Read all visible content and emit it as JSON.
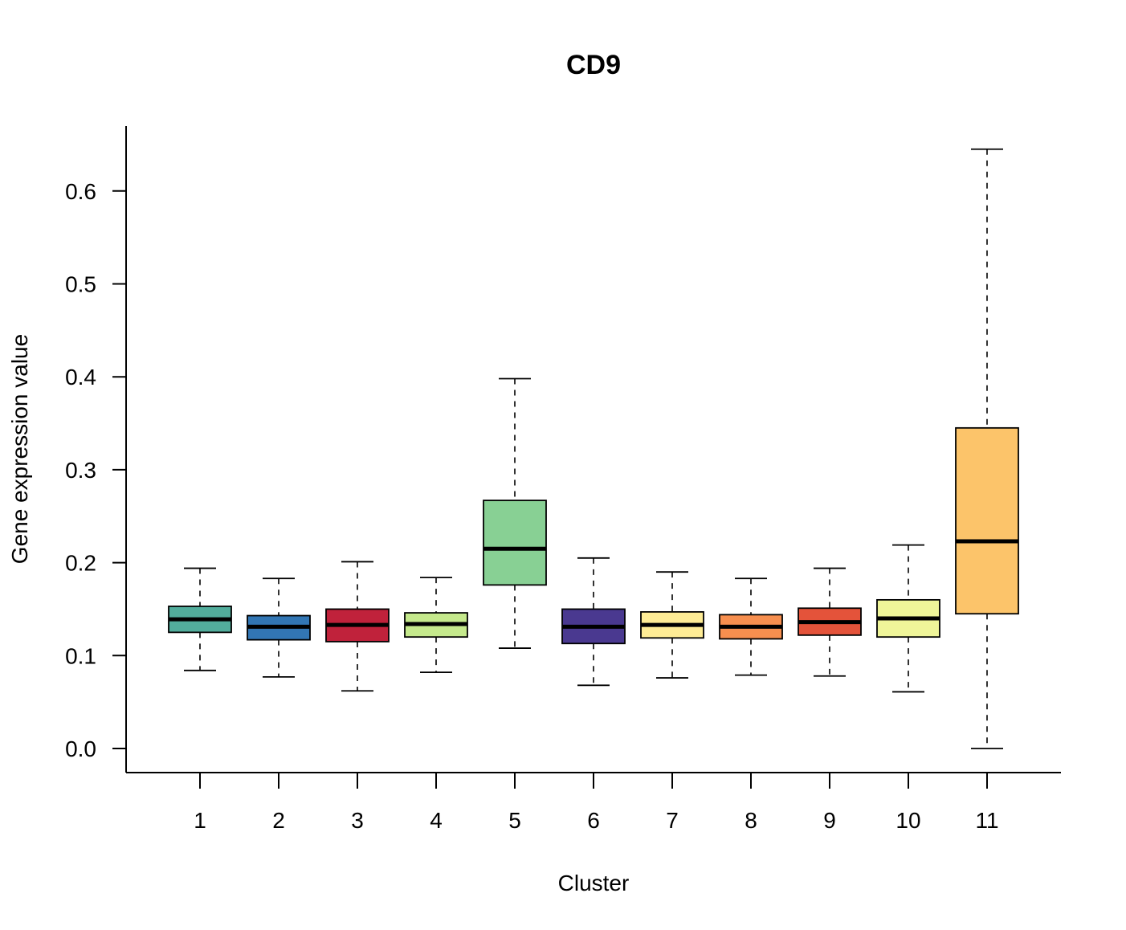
{
  "chart_data": {
    "type": "box",
    "title": "CD9",
    "xlabel": "Cluster",
    "ylabel": "Gene expression value",
    "ylim": [
      0,
      0.65
    ],
    "yticks": [
      0.0,
      0.1,
      0.2,
      0.3,
      0.4,
      0.5,
      0.6
    ],
    "ytick_labels": [
      "0.0",
      "0.1",
      "0.2",
      "0.3",
      "0.4",
      "0.5",
      "0.6"
    ],
    "categories": [
      "1",
      "2",
      "3",
      "4",
      "5",
      "6",
      "7",
      "8",
      "9",
      "10",
      "11"
    ],
    "boxes": [
      {
        "category": "1",
        "whisker_low": 0.084,
        "q1": 0.125,
        "median": 0.139,
        "q3": 0.153,
        "whisker_high": 0.194,
        "color": "#52AD9C"
      },
      {
        "category": "2",
        "whisker_low": 0.077,
        "q1": 0.117,
        "median": 0.131,
        "q3": 0.143,
        "whisker_high": 0.183,
        "color": "#3276B4"
      },
      {
        "category": "3",
        "whisker_low": 0.062,
        "q1": 0.115,
        "median": 0.133,
        "q3": 0.15,
        "whisker_high": 0.201,
        "color": "#C0223B"
      },
      {
        "category": "4",
        "whisker_low": 0.082,
        "q1": 0.12,
        "median": 0.134,
        "q3": 0.146,
        "whisker_high": 0.184,
        "color": "#C5E98C"
      },
      {
        "category": "5",
        "whisker_low": 0.108,
        "q1": 0.176,
        "median": 0.215,
        "q3": 0.267,
        "whisker_high": 0.398,
        "color": "#88D094"
      },
      {
        "category": "6",
        "whisker_low": 0.068,
        "q1": 0.113,
        "median": 0.131,
        "q3": 0.15,
        "whisker_high": 0.205,
        "color": "#4A3990"
      },
      {
        "category": "7",
        "whisker_low": 0.076,
        "q1": 0.119,
        "median": 0.133,
        "q3": 0.147,
        "whisker_high": 0.19,
        "color": "#FEEC95"
      },
      {
        "category": "8",
        "whisker_low": 0.079,
        "q1": 0.118,
        "median": 0.131,
        "q3": 0.144,
        "whisker_high": 0.183,
        "color": "#F78F4F"
      },
      {
        "category": "9",
        "whisker_low": 0.078,
        "q1": 0.122,
        "median": 0.136,
        "q3": 0.151,
        "whisker_high": 0.194,
        "color": "#E4533A"
      },
      {
        "category": "10",
        "whisker_low": 0.061,
        "q1": 0.12,
        "median": 0.14,
        "q3": 0.16,
        "whisker_high": 0.219,
        "color": "#EFF599"
      },
      {
        "category": "11",
        "whisker_low": 0.0,
        "q1": 0.145,
        "median": 0.223,
        "q3": 0.345,
        "whisker_high": 0.645,
        "color": "#FCC46A"
      }
    ]
  }
}
